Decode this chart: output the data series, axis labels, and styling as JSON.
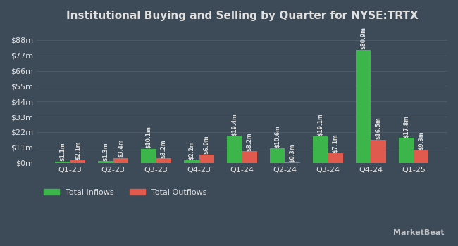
{
  "title": "Institutional Buying and Selling by Quarter for NYSE:TRTX",
  "quarters": [
    "Q1-23",
    "Q2-23",
    "Q3-23",
    "Q4-23",
    "Q1-24",
    "Q2-24",
    "Q3-24",
    "Q4-24",
    "Q1-25"
  ],
  "inflows": [
    1.1,
    1.3,
    10.1,
    2.2,
    19.4,
    10.6,
    19.1,
    80.9,
    17.8
  ],
  "outflows": [
    2.1,
    3.4,
    3.2,
    6.0,
    8.2,
    0.3,
    7.1,
    16.5,
    9.3
  ],
  "inflow_labels": [
    "$1.1m",
    "$1.3m",
    "$10.1m",
    "$2.2m",
    "$19.4m",
    "$10.6m",
    "$19.1m",
    "$80.9m",
    "$17.8m"
  ],
  "outflow_labels": [
    "$2.1m",
    "$3.4m",
    "$3.2m",
    "$6.0m",
    "$8.2m",
    "$0.3m",
    "$7.1m",
    "$16.5m",
    "$9.3m"
  ],
  "inflow_color": "#3cb54a",
  "outflow_color": "#e05a4e",
  "background_color": "#3d4a57",
  "text_color": "#e0e0e0",
  "grid_color": "#4d5a67",
  "yticks": [
    0,
    11,
    22,
    33,
    44,
    55,
    66,
    77,
    88
  ],
  "ytick_labels": [
    "$0m",
    "$11m",
    "$22m",
    "$33m",
    "$44m",
    "$55m",
    "$66m",
    "$77m",
    "$88m"
  ],
  "bar_width": 0.35,
  "legend_inflow": "Total Inflows",
  "legend_outflow": "Total Outflows"
}
